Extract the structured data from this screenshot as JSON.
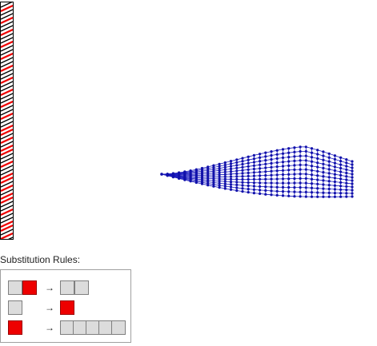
{
  "colors": {
    "strip_cell_red": "#ee0000",
    "strip_cell_black": "#000000",
    "strip_border": "#000000",
    "mesh_point": "#1111aa",
    "mesh_line": "#1a1abf",
    "rule_cell_gray": "#dcdcdc",
    "rule_cell_red": "#ee0000"
  },
  "rules": {
    "title": "Substitution Rules:",
    "arrow_glyph": "→",
    "items": [
      {
        "lhs": [
          "gray",
          "red"
        ],
        "rhs": [
          "gray",
          "gray"
        ]
      },
      {
        "lhs": [
          "gray"
        ],
        "rhs": [
          "red"
        ]
      },
      {
        "lhs": [
          "red"
        ],
        "rhs": [
          "gray",
          "gray",
          "gray",
          "gray",
          "gray"
        ]
      }
    ]
  }
}
